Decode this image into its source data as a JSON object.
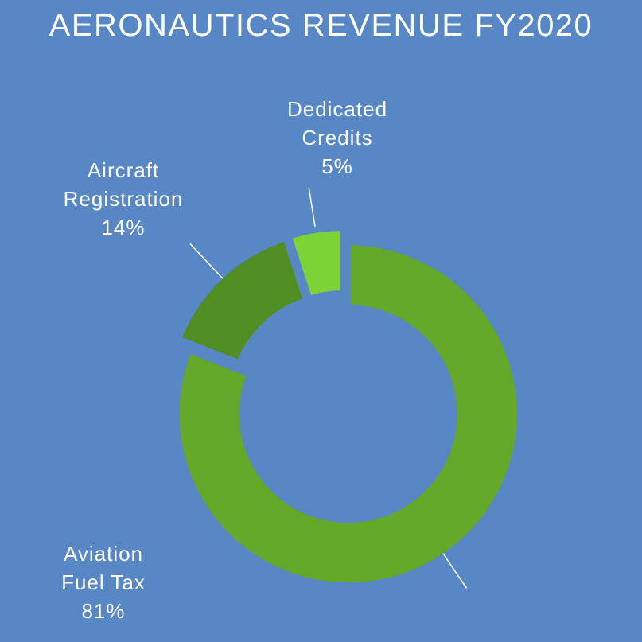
{
  "chart_data": {
    "type": "pie",
    "title": "AERONAUTICS REVENUE FY2020",
    "categories": [
      "Aviation Fuel Tax",
      "Aircraft Registration",
      "Dedicated Credits"
    ],
    "label_lines": [
      [
        "Aviation",
        "Fuel Tax"
      ],
      [
        "Aircraft",
        "Registration"
      ],
      [
        "Dedicated",
        "Credits"
      ]
    ],
    "values": [
      81,
      14,
      5
    ],
    "value_labels": [
      "81%",
      "14%",
      "5%"
    ],
    "colors": [
      "#63a829",
      "#508d22",
      "#7bd335"
    ],
    "donut": true,
    "exploded": true,
    "legend": "none"
  }
}
